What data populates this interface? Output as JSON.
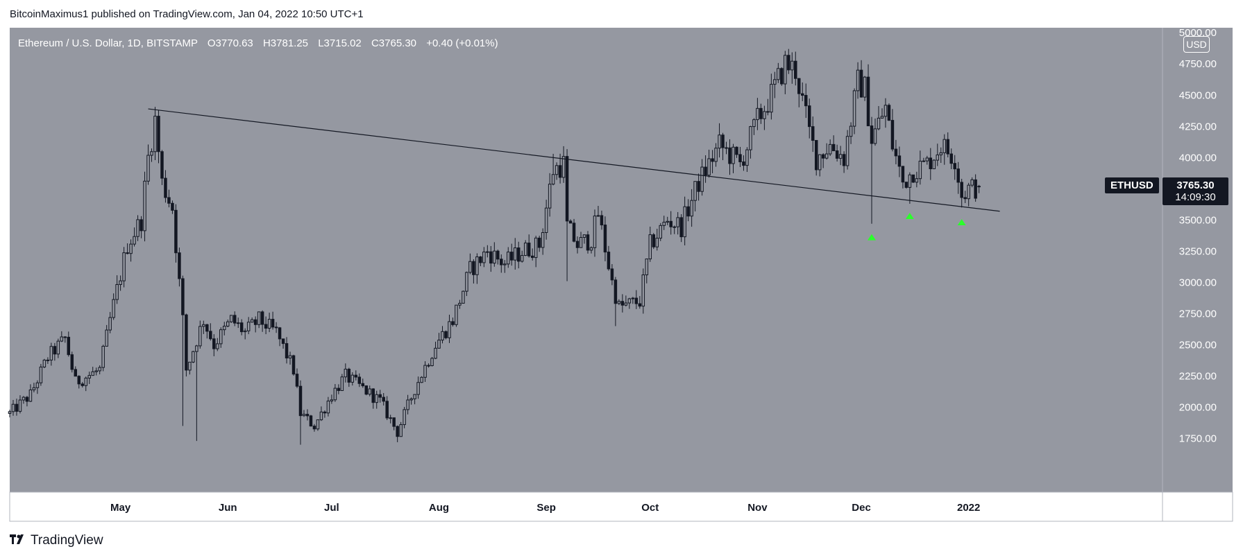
{
  "header": {
    "published_by": "BitcoinMaximus1 published on TradingView.com, Jan 04, 2022 10:50 UTC+1"
  },
  "legend": {
    "symbol": "Ethereum / U.S. Dollar, 1D, BITSTAMP",
    "open_label": "O",
    "open": "3770.63",
    "high_label": "H",
    "high": "3781.25",
    "low_label": "L",
    "low": "3715.02",
    "close_label": "C",
    "close": "3765.30",
    "change": "+0.40 (+0.01%)"
  },
  "price_scale": {
    "currency": "USD"
  },
  "last_price": {
    "symbol": "ETHUSD",
    "price": "3765.30",
    "countdown": "14:09:30"
  },
  "footer": {
    "brand": "TradingView",
    "logo": "tv-logo-icon"
  },
  "colors": {
    "background": "#9598a1",
    "candle": "#131722",
    "trendline": "#131722",
    "marker": "#2bff2b",
    "badge": "#131722"
  },
  "chart_data": {
    "type": "candlestick",
    "title": "Ethereum / U.S. Dollar, 1D, BITSTAMP",
    "x_ticks": [
      "May",
      "Jun",
      "Jul",
      "Aug",
      "Sep",
      "Oct",
      "Nov",
      "Dec",
      "2022"
    ],
    "y_ticks": [
      5000,
      4750,
      4500,
      4250,
      4000,
      3750,
      3500,
      3250,
      3000,
      2750,
      2500,
      2250,
      2000,
      1750
    ],
    "y_tick_labels": [
      "5000.00",
      "4750.00",
      "4500.00",
      "4250.00",
      "4000.00",
      "3750.00",
      "3500.00",
      "3250.00",
      "3000.00",
      "2750.00",
      "2500.00",
      "2250.00",
      "2000.00",
      "1750.00"
    ],
    "ylim": [
      1320,
      5040
    ],
    "xlim": [
      "2021-03-30",
      "2022-02-26"
    ],
    "x_tick_dates": [
      "2021-05-01",
      "2021-06-01",
      "2021-07-01",
      "2021-08-01",
      "2021-09-01",
      "2021-10-01",
      "2021-11-01",
      "2021-12-01",
      "2022-01-01"
    ],
    "trendline": {
      "start": {
        "date": "2021-05-09",
        "price": 4390
      },
      "end": {
        "date": "2022-01-10",
        "price": 3570
      }
    },
    "support_markers": [
      {
        "date": "2021-12-04",
        "price": 3360
      },
      {
        "date": "2021-12-15",
        "price": 3530
      },
      {
        "date": "2021-12-30",
        "price": 3480
      }
    ],
    "grid": false,
    "anchors": [
      [
        "2021-03-30",
        1950
      ],
      [
        "2021-04-05",
        2100
      ],
      [
        "2021-04-10",
        2400
      ],
      [
        "2021-04-15",
        2550
      ],
      [
        "2021-04-18",
        2200
      ],
      [
        "2021-04-25",
        2300
      ],
      [
        "2021-04-28",
        2700
      ],
      [
        "2021-05-03",
        3300
      ],
      [
        "2021-05-07",
        3500
      ],
      [
        "2021-05-09",
        4000
      ],
      [
        "2021-05-11",
        4300
      ],
      [
        "2021-05-13",
        3800
      ],
      [
        "2021-05-16",
        3600
      ],
      [
        "2021-05-19",
        2700
      ],
      [
        "2021-05-20",
        2300
      ],
      [
        "2021-05-25",
        2700
      ],
      [
        "2021-05-28",
        2500
      ],
      [
        "2021-06-02",
        2700
      ],
      [
        "2021-06-06",
        2600
      ],
      [
        "2021-06-10",
        2700
      ],
      [
        "2021-06-15",
        2600
      ],
      [
        "2021-06-20",
        2300
      ],
      [
        "2021-06-22",
        1950
      ],
      [
        "2021-06-26",
        1850
      ],
      [
        "2021-07-01",
        2100
      ],
      [
        "2021-07-05",
        2250
      ],
      [
        "2021-07-10",
        2150
      ],
      [
        "2021-07-15",
        2050
      ],
      [
        "2021-07-20",
        1800
      ],
      [
        "2021-07-25",
        2150
      ],
      [
        "2021-07-31",
        2500
      ],
      [
        "2021-08-05",
        2700
      ],
      [
        "2021-08-10",
        3100
      ],
      [
        "2021-08-15",
        3250
      ],
      [
        "2021-08-20",
        3150
      ],
      [
        "2021-08-25",
        3250
      ],
      [
        "2021-08-30",
        3300
      ],
      [
        "2021-09-03",
        3900
      ],
      [
        "2021-09-06",
        3950
      ],
      [
        "2021-09-07",
        3450
      ],
      [
        "2021-09-10",
        3300
      ],
      [
        "2021-09-14",
        3350
      ],
      [
        "2021-09-16",
        3550
      ],
      [
        "2021-09-20",
        3000
      ],
      [
        "2021-09-22",
        2800
      ],
      [
        "2021-09-28",
        2850
      ],
      [
        "2021-10-01",
        3300
      ],
      [
        "2021-10-06",
        3500
      ],
      [
        "2021-10-10",
        3450
      ],
      [
        "2021-10-15",
        3800
      ],
      [
        "2021-10-21",
        4100
      ],
      [
        "2021-10-27",
        3950
      ],
      [
        "2021-11-01",
        4300
      ],
      [
        "2021-11-05",
        4500
      ],
      [
        "2021-11-09",
        4750
      ],
      [
        "2021-11-12",
        4700
      ],
      [
        "2021-11-16",
        4200
      ],
      [
        "2021-11-18",
        4000
      ],
      [
        "2021-11-22",
        4100
      ],
      [
        "2021-11-26",
        4000
      ],
      [
        "2021-11-30",
        4600
      ],
      [
        "2021-12-02",
        4550
      ],
      [
        "2021-12-04",
        4150
      ],
      [
        "2021-12-08",
        4400
      ],
      [
        "2021-12-10",
        4100
      ],
      [
        "2021-12-13",
        3800
      ],
      [
        "2021-12-16",
        3900
      ],
      [
        "2021-12-20",
        3950
      ],
      [
        "2021-12-24",
        4100
      ],
      [
        "2021-12-28",
        4000
      ],
      [
        "2021-12-30",
        3700
      ],
      [
        "2022-01-01",
        3750
      ],
      [
        "2022-01-04",
        3765
      ]
    ],
    "events": [
      {
        "date": "2021-05-12",
        "high": 4380
      },
      {
        "date": "2021-05-19",
        "low": 1850
      },
      {
        "date": "2021-05-23",
        "low": 1730
      },
      {
        "date": "2021-06-22",
        "low": 1700
      },
      {
        "date": "2021-07-20",
        "low": 1720
      },
      {
        "date": "2021-09-03",
        "high": 4030
      },
      {
        "date": "2021-09-07",
        "low": 3010
      },
      {
        "date": "2021-09-21",
        "low": 2650
      },
      {
        "date": "2021-11-10",
        "high": 4870
      },
      {
        "date": "2021-12-01",
        "high": 4780
      },
      {
        "date": "2021-12-04",
        "low": 3470
      },
      {
        "date": "2021-12-15",
        "low": 3630
      },
      {
        "date": "2021-12-30",
        "low": 3600
      }
    ],
    "last_candle": {
      "date": "2022-01-04",
      "open": 3770.63,
      "high": 3781.25,
      "low": 3715.02,
      "close": 3765.3
    }
  }
}
